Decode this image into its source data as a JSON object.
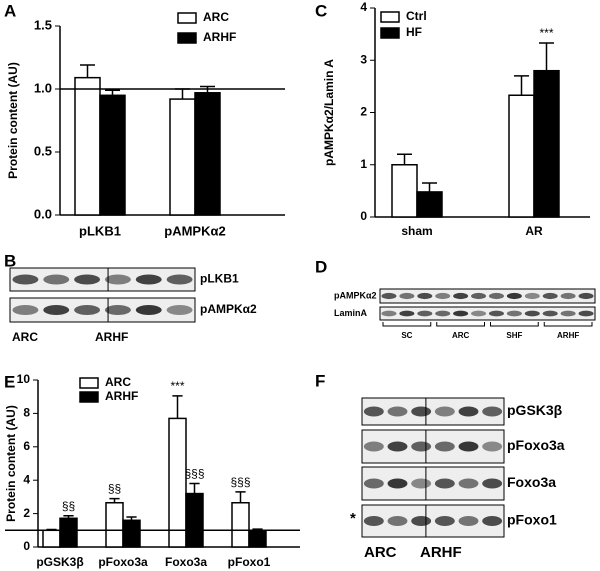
{
  "chart_data": [
    {
      "panel": "A",
      "type": "bar",
      "ylabel": "Protein content (AU)",
      "categories": [
        "pLKB1",
        "pAMPKα2"
      ],
      "series": [
        {
          "name": "ARC",
          "color": "#ffffff",
          "values": [
            1.09,
            0.92
          ],
          "errors": [
            0.1,
            0.08
          ]
        },
        {
          "name": "ARHF",
          "color": "#000000",
          "values": [
            0.95,
            0.97
          ],
          "errors": [
            0.04,
            0.05
          ]
        }
      ],
      "ylim": [
        0,
        1.5
      ],
      "yticks": [
        {
          "value": 0,
          "label": "0.0"
        },
        0.5,
        {
          "value": 1,
          "label": "1.0"
        },
        1.5
      ],
      "hline": 1,
      "legend": "top-right"
    },
    {
      "panel": "C",
      "type": "bar",
      "ylabel": "pAMPKα2/Lamin A",
      "categories": [
        "sham",
        "AR"
      ],
      "series": [
        {
          "name": "Ctrl",
          "color": "#ffffff",
          "values": [
            1.0,
            2.33
          ],
          "errors": [
            0.2,
            0.37
          ],
          "annotations": [
            null,
            null
          ]
        },
        {
          "name": "HF",
          "color": "#000000",
          "values": [
            0.48,
            2.8
          ],
          "errors": [
            0.17,
            0.53
          ],
          "annotations": [
            null,
            "***"
          ]
        }
      ],
      "ylim": [
        0,
        4
      ],
      "yticks": [
        0,
        1,
        2,
        3,
        4
      ],
      "legend": "top-left"
    },
    {
      "panel": "E",
      "type": "bar",
      "ylabel": "Protein content (AU)",
      "categories": [
        "pGSK3β",
        "pFoxo3a",
        "Foxo3a",
        "pFoxo1"
      ],
      "series": [
        {
          "name": "ARC",
          "color": "#ffffff",
          "values": [
            1.0,
            2.65,
            7.7,
            2.65
          ],
          "errors": [
            0.05,
            0.25,
            1.35,
            0.65
          ],
          "annotations": [
            null,
            "§§",
            "***",
            "§§§"
          ]
        },
        {
          "name": "ARHF",
          "color": "#000000",
          "values": [
            1.72,
            1.6,
            3.2,
            1.0
          ],
          "errors": [
            0.15,
            0.2,
            0.6,
            0.07
          ],
          "annotations": [
            "§§",
            null,
            "§§§",
            null
          ]
        }
      ],
      "ylim": [
        0,
        10
      ],
      "yticks": [
        0,
        2,
        4,
        6,
        8,
        10
      ],
      "hline": 1,
      "legend": "top-left"
    }
  ],
  "blots": [
    {
      "panel": "B",
      "rows": [
        "pLKB1",
        "pAMPKα2"
      ],
      "groups": [
        "ARC",
        "ARHF"
      ]
    },
    {
      "panel": "D",
      "rows": [
        "pAMPKα2",
        "LaminA"
      ],
      "groups": [
        "SC",
        "ARC",
        "SHF",
        "ARHF"
      ]
    },
    {
      "panel": "F",
      "rows": [
        "pGSK3β",
        "pFoxo3a",
        "Foxo3a",
        "pFoxo1"
      ],
      "groups": [
        "ARC",
        "ARHF"
      ],
      "note": "*"
    }
  ]
}
